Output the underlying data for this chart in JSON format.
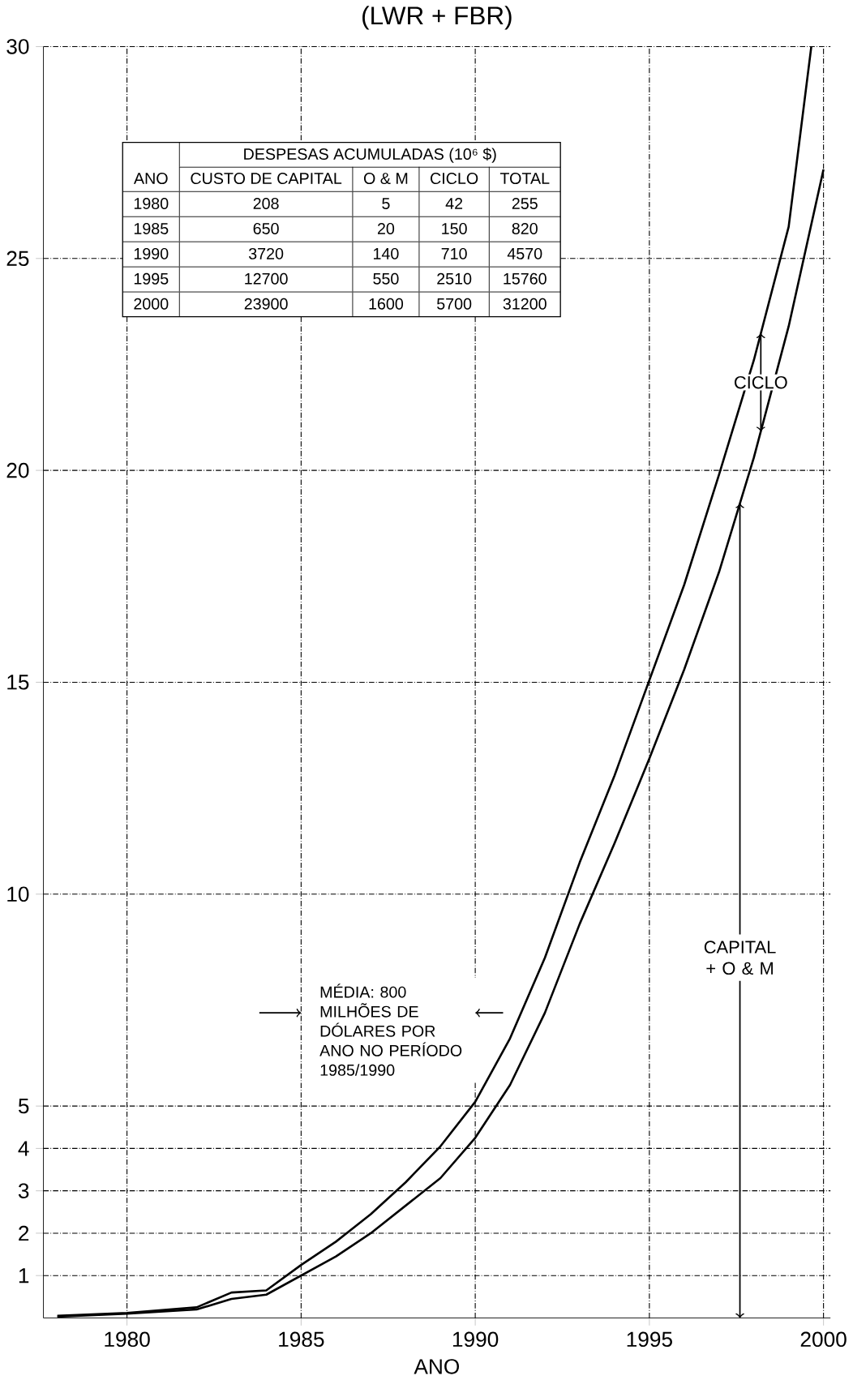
{
  "chart_data": {
    "type": "line",
    "title": "(LWR + FBR)",
    "xlabel": "ANO",
    "x": [
      1978,
      1980,
      1982,
      1983,
      1984,
      1985,
      1986,
      1987,
      1988,
      1989,
      1990,
      1991,
      1992,
      1993,
      1994,
      1995,
      1996,
      1997,
      1998,
      1999,
      1999.65
    ],
    "series": [
      {
        "color": "#000000",
        "values": [
          0.05,
          0.12,
          0.25,
          0.6,
          0.65,
          1.25,
          1.8,
          2.45,
          3.2,
          4.05,
          5.1,
          6.6,
          8.5,
          10.75,
          12.8,
          15.05,
          17.3,
          19.9,
          22.6,
          25.75,
          30
        ]
      },
      {
        "color": "#000000",
        "x": [
          1978,
          1980,
          1982,
          1983,
          1984,
          1985,
          1986,
          1987,
          1988,
          1989,
          1990,
          1991,
          1992,
          1993,
          1994,
          1995,
          1996,
          1997,
          1998,
          1999,
          2000
        ],
        "values": [
          0.03,
          0.1,
          0.2,
          0.45,
          0.55,
          1.0,
          1.45,
          2.0,
          2.65,
          3.3,
          4.25,
          5.5,
          7.2,
          9.3,
          11.2,
          13.2,
          15.3,
          17.6,
          20.3,
          23.4,
          27.1
        ]
      }
    ],
    "xlim": [
      1977.6,
      2000.2
    ],
    "ylim": [
      0,
      30
    ],
    "xticks": [
      1980,
      1985,
      1990,
      1995,
      2000
    ],
    "yticks": [
      1,
      2,
      3,
      4,
      5,
      10,
      15,
      20,
      25,
      30
    ],
    "grid": true,
    "marker": "none",
    "line_style": "solid",
    "annotations": [
      "DESPESAS ACUMULADAS (10⁶ $)",
      "ANO",
      "CUSTO DE CAPITAL",
      "O & M",
      "CICLO",
      "TOTAL",
      "1980",
      "208",
      "5",
      "42",
      "255",
      "1985",
      "650",
      "20",
      "150",
      "820",
      "1990",
      "3720",
      "140",
      "710",
      "4570",
      "1995",
      "12700",
      "550",
      "2510",
      "15760",
      "2000",
      "23900",
      "1600",
      "5700",
      "31200",
      "MÉDIA: 800 MILHÕES DE DÓLARES POR ANO NO PERÍODO 1985/1990",
      "CICLO",
      "CAPITAL + O & M"
    ]
  }
}
